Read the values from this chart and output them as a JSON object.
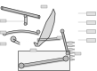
{
  "bg_color": "#ffffff",
  "part_color": "#cccccc",
  "line_color": "#444444",
  "callout_bg": "#e8e8e8",
  "callout_border": "#888888",
  "figsize": [
    1.09,
    0.8
  ],
  "dpi": 100,
  "page_bg": "#f2f2f2",
  "spring_color": "#bbbbbb",
  "shadow_color": "#999999"
}
